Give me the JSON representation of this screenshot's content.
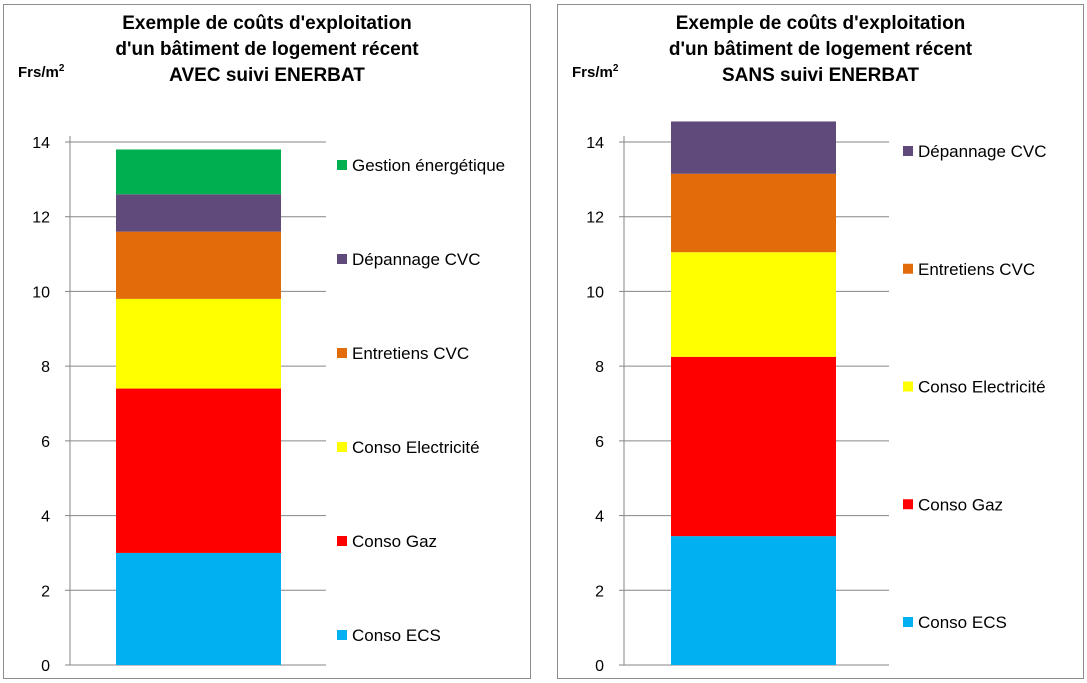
{
  "chart_data": [
    {
      "type": "bar",
      "stacked": true,
      "title_lines": [
        "Exemple de coûts d'exploitation",
        "d'un bâtiment de logement récent",
        "AVEC suivi ENERBAT"
      ],
      "ylabel": "Frs/m",
      "ylabel_sup": "2",
      "ylim": [
        0,
        14
      ],
      "yticks": [
        "0",
        "2",
        "4",
        "6",
        "8",
        "10",
        "12",
        "14"
      ],
      "grid": true,
      "legend_position": "right",
      "series": [
        {
          "name": "Conso ECS",
          "value": 3.0,
          "color": "#00b0f0"
        },
        {
          "name": "Conso Gaz",
          "value": 4.4,
          "color": "#ff0000"
        },
        {
          "name": "Conso Electricité",
          "value": 2.4,
          "color": "#ffff00"
        },
        {
          "name": "Entretiens CVC",
          "value": 1.8,
          "color": "#e36c0a"
        },
        {
          "name": "Dépannage CVC",
          "value": 1.0,
          "color": "#604a7b"
        },
        {
          "name": "Gestion énergétique",
          "value": 1.2,
          "color": "#00b050"
        }
      ]
    },
    {
      "type": "bar",
      "stacked": true,
      "title_lines": [
        "Exemple de coûts d'exploitation",
        "d'un bâtiment de logement récent",
        "SANS suivi ENERBAT"
      ],
      "ylabel": "Frs/m",
      "ylabel_sup": "2",
      "ylim": [
        0,
        14
      ],
      "yticks": [
        "0",
        "2",
        "4",
        "6",
        "8",
        "10",
        "12",
        "14"
      ],
      "grid": true,
      "legend_position": "right",
      "series": [
        {
          "name": "Conso ECS",
          "value": 3.45,
          "color": "#00b0f0"
        },
        {
          "name": "Conso Gaz",
          "value": 4.8,
          "color": "#ff0000"
        },
        {
          "name": "Conso Electricité",
          "value": 2.8,
          "color": "#ffff00"
        },
        {
          "name": "Entretiens CVC",
          "value": 2.1,
          "color": "#e36c0a"
        },
        {
          "name": "Dépannage CVC",
          "value": 1.4,
          "color": "#604a7b"
        }
      ]
    }
  ]
}
